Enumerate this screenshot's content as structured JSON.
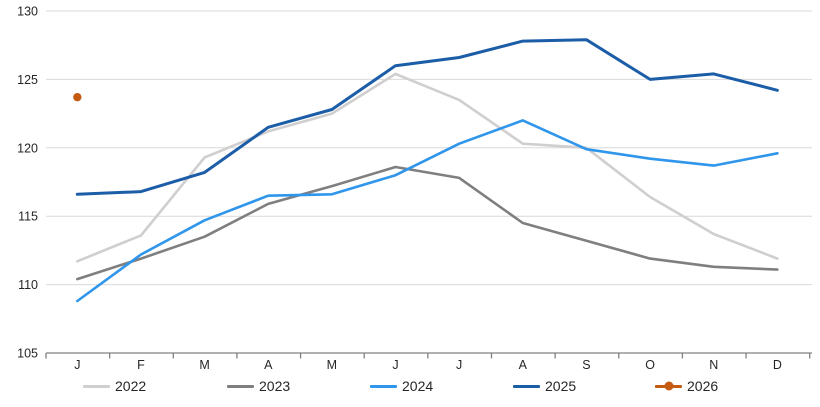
{
  "chart_data": {
    "type": "line",
    "title": "",
    "xlabel": "",
    "ylabel": "",
    "ylim": [
      105,
      130
    ],
    "y_ticks": [
      105,
      110,
      115,
      120,
      125,
      130
    ],
    "x_tick_labels": [
      "J",
      "F",
      "M",
      "A",
      "M",
      "J",
      "J",
      "A",
      "S",
      "O",
      "N",
      "D"
    ],
    "grid": "horizontal",
    "legend_position": "bottom",
    "series": [
      {
        "name": "2022",
        "color": "#d0cece",
        "style": "line",
        "values": [
          111.7,
          113.6,
          119.3,
          121.2,
          122.5,
          125.4,
          123.5,
          120.3,
          120.0,
          116.4,
          113.7,
          111.9
        ]
      },
      {
        "name": "2023",
        "color": "#7f7f7f",
        "style": "line",
        "values": [
          110.4,
          111.9,
          113.5,
          115.9,
          117.2,
          118.6,
          117.8,
          114.5,
          113.2,
          111.9,
          111.3,
          111.1
        ]
      },
      {
        "name": "2024",
        "color": "#2f96ec",
        "style": "line",
        "values": [
          108.8,
          112.2,
          114.7,
          116.5,
          116.6,
          118.0,
          120.3,
          122.0,
          119.9,
          119.2,
          118.7,
          119.6
        ]
      },
      {
        "name": "2025",
        "color": "#1c5da8",
        "style": "line",
        "values": [
          116.6,
          116.8,
          118.2,
          121.5,
          122.8,
          126.0,
          126.6,
          127.8,
          127.9,
          125.0,
          125.4,
          124.2
        ]
      },
      {
        "name": "2026",
        "color": "#c55a11",
        "style": "point",
        "values": [
          123.7,
          null,
          null,
          null,
          null,
          null,
          null,
          null,
          null,
          null,
          null,
          null
        ]
      }
    ],
    "colors": {
      "gridline": "#d9d9d9",
      "axis": "#808080",
      "tick_text": "#262626"
    }
  }
}
